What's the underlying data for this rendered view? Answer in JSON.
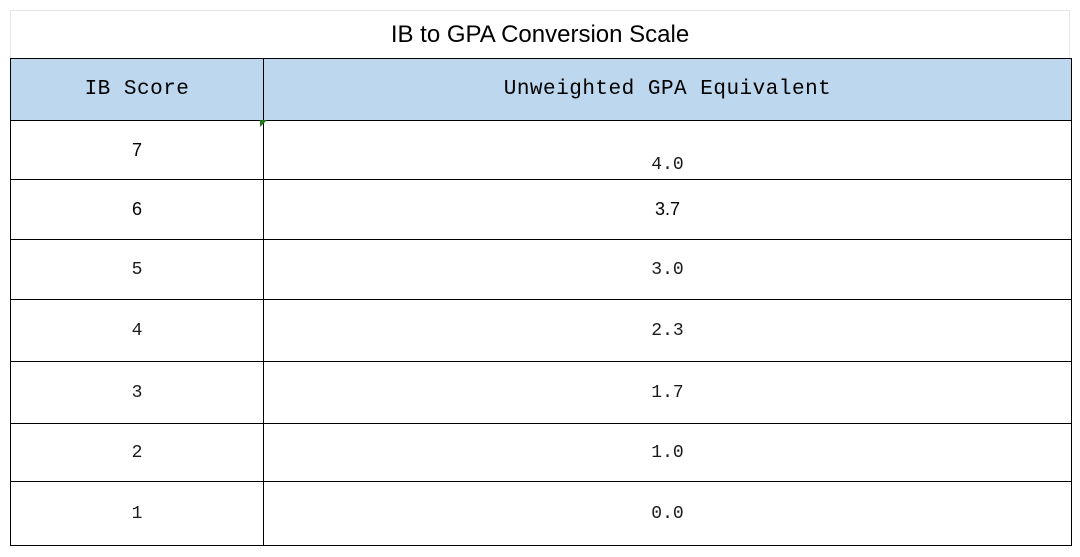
{
  "title": "IB to GPA Conversion Scale",
  "columns": [
    "IB Score",
    "Unweighted GPA Equivalent"
  ],
  "rows": [
    {
      "ib": "7",
      "gpa": "4.0"
    },
    {
      "ib": "6",
      "gpa": "3.7"
    },
    {
      "ib": "5",
      "gpa": "3.0"
    },
    {
      "ib": "4",
      "gpa": "2.3"
    },
    {
      "ib": "3",
      "gpa": "1.7"
    },
    {
      "ib": "2",
      "gpa": "1.0"
    },
    {
      "ib": "1",
      "gpa": "0.0"
    }
  ],
  "colors": {
    "header_background": "#bdd7ee",
    "border": "#000000",
    "cell_marker": "#1f7a1f"
  }
}
